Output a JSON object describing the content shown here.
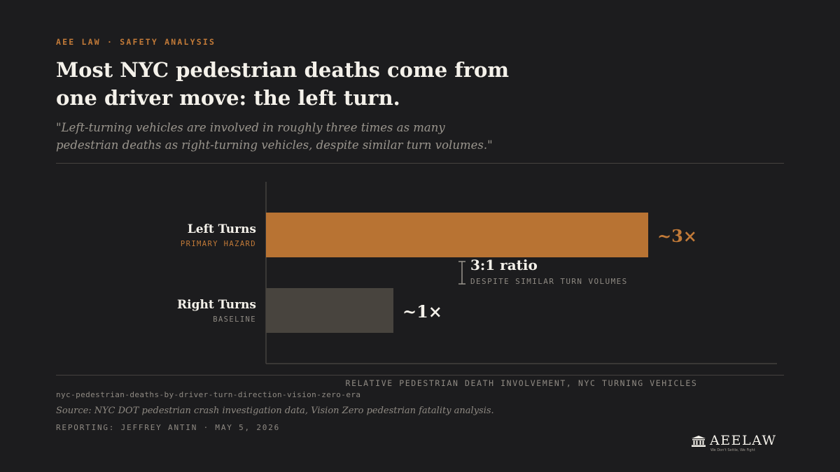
{
  "header": {
    "eyebrow": "AEE LAW · SAFETY ANALYSIS",
    "title": "Most NYC pedestrian deaths come from one driver move: the left turn.",
    "quote": "\"Left-turning vehicles are involved in roughly three times as many pedestrian deaths as right-turning vehicles, despite similar turn volumes.\""
  },
  "chart_data": {
    "type": "bar",
    "orientation": "horizontal",
    "categories": [
      "Left Turns",
      "Right Turns"
    ],
    "sublabels": [
      "PRIMARY HAZARD",
      "BASELINE"
    ],
    "values": [
      3,
      1
    ],
    "value_labels": [
      "~3×",
      "~1×"
    ],
    "xlabel": "RELATIVE PEDESTRIAN DEATH INVOLVEMENT, NYC TURNING VEHICLES",
    "xlim": [
      0,
      3.3
    ],
    "grid": false,
    "annotation": {
      "title": "3:1 ratio",
      "subtitle": "DESPITE SIMILAR TURN VOLUMES"
    },
    "colors": {
      "bars": [
        "#b87333",
        "#48443e"
      ],
      "value_labels": [
        "#c27a38",
        "#f4f1ea"
      ],
      "sublabels": [
        "#c27a38",
        "#8f8a83"
      ]
    }
  },
  "footer": {
    "slug": "nyc-pedestrian-deaths-by-driver-turn-direction-vision-zero-era",
    "source": "Source: NYC DOT pedestrian crash investigation data, Vision Zero pedestrian fatality analysis.",
    "byline": "REPORTING: JEFFREY ANTIN · MAY 5, 2026"
  },
  "logo": {
    "icon": "courthouse-icon",
    "name": "AEELAW",
    "tagline": "We Don't Settle, We Fight"
  }
}
